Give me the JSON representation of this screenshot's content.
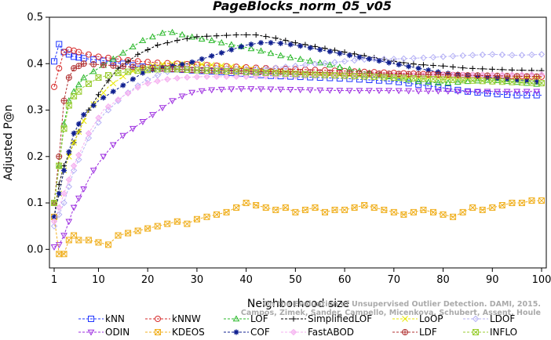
{
  "chart_data": {
    "type": "line",
    "title": "PageBlocks_norm_05_v05",
    "xlabel": "Neighborhood size",
    "ylabel": "Adjusted P@n",
    "xlim": [
      1,
      100
    ],
    "ylim": [
      -0.04,
      0.5
    ],
    "xticks": [
      1,
      10,
      20,
      30,
      40,
      50,
      60,
      70,
      80,
      90,
      100
    ],
    "yticks": [
      0.0,
      0.1,
      0.2,
      0.3,
      0.4,
      0.5
    ],
    "xtick_labels": [
      "1",
      "10",
      "20",
      "30",
      "40",
      "50",
      "60",
      "70",
      "80",
      "90",
      "100"
    ],
    "ytick_labels": [
      "0.0",
      "0.1",
      "0.2",
      "0.3",
      "0.4",
      "0.5"
    ],
    "grid": false,
    "legend_position": "bottom",
    "credit_lines": [
      "On the Evaluation of Unsupervised Outlier Detection. DAMI, 2015.",
      "Campos, Zimek, Sander, Campello, Micenkova, Schubert, Assent, Houle"
    ],
    "series": [
      {
        "name": "kNN",
        "color": "#1f35ff",
        "marker": "square",
        "x": [
          1,
          2,
          3,
          5,
          8,
          12,
          16,
          20,
          25,
          30,
          35,
          40,
          45,
          50,
          55,
          60,
          65,
          70,
          75,
          80,
          85,
          90,
          95,
          100
        ],
        "y": [
          0.405,
          0.442,
          0.425,
          0.415,
          0.41,
          0.405,
          0.398,
          0.392,
          0.388,
          0.385,
          0.382,
          0.378,
          0.374,
          0.372,
          0.37,
          0.368,
          0.365,
          0.362,
          0.355,
          0.348,
          0.34,
          0.335,
          0.332,
          0.332
        ]
      },
      {
        "name": "kNNW",
        "color": "#d62a2a",
        "marker": "circle",
        "x": [
          1,
          2,
          3,
          4,
          5,
          7,
          10,
          14,
          18,
          22,
          26,
          30,
          35,
          40,
          45,
          50,
          55,
          60,
          65,
          70,
          75,
          80,
          85,
          90,
          95,
          100
        ],
        "y": [
          0.35,
          0.39,
          0.425,
          0.43,
          0.428,
          0.422,
          0.415,
          0.41,
          0.405,
          0.402,
          0.4,
          0.398,
          0.395,
          0.392,
          0.39,
          0.388,
          0.386,
          0.384,
          0.382,
          0.38,
          0.378,
          0.376,
          0.375,
          0.374,
          0.373,
          0.372
        ]
      },
      {
        "name": "LOF",
        "color": "#2ab82a",
        "marker": "triangle",
        "x": [
          1,
          2,
          3,
          4,
          5,
          7,
          10,
          13,
          16,
          19,
          22,
          24,
          26,
          28,
          30,
          33,
          36,
          40,
          44,
          48,
          52,
          56,
          60,
          65,
          70,
          75,
          80,
          85,
          90,
          95,
          100
        ],
        "y": [
          0.1,
          0.18,
          0.27,
          0.32,
          0.34,
          0.37,
          0.39,
          0.41,
          0.43,
          0.45,
          0.462,
          0.47,
          0.465,
          0.46,
          0.455,
          0.45,
          0.443,
          0.435,
          0.425,
          0.415,
          0.408,
          0.4,
          0.39,
          0.38,
          0.37,
          0.362,
          0.358,
          0.362,
          0.365,
          0.36,
          0.355
        ]
      },
      {
        "name": "SimplifiedLOF",
        "color": "#000000",
        "marker": "plus",
        "x": [
          1,
          2,
          3,
          5,
          8,
          11,
          14,
          18,
          22,
          26,
          30,
          34,
          38,
          42,
          46,
          50,
          55,
          60,
          65,
          70,
          75,
          80,
          85,
          90,
          95,
          100
        ],
        "y": [
          0.07,
          0.14,
          0.18,
          0.23,
          0.3,
          0.35,
          0.39,
          0.42,
          0.44,
          0.45,
          0.458,
          0.46,
          0.462,
          0.462,
          0.455,
          0.445,
          0.435,
          0.425,
          0.415,
          0.405,
          0.398,
          0.395,
          0.39,
          0.388,
          0.386,
          0.385
        ]
      },
      {
        "name": "LoOP",
        "color": "#e8e800",
        "marker": "cross",
        "x": [
          1,
          2,
          3,
          5,
          8,
          12,
          16,
          20,
          24,
          28,
          32,
          36,
          40,
          45,
          50,
          55,
          60,
          65,
          70,
          75,
          80,
          85,
          90,
          95,
          100
        ],
        "y": [
          0.07,
          0.12,
          0.17,
          0.23,
          0.3,
          0.35,
          0.38,
          0.395,
          0.4,
          0.4,
          0.398,
          0.395,
          0.39,
          0.385,
          0.38,
          0.377,
          0.375,
          0.373,
          0.372,
          0.371,
          0.37,
          0.37,
          0.37,
          0.37,
          0.37
        ]
      },
      {
        "name": "LDOF",
        "color": "#b4b0f5",
        "marker": "diamond",
        "x": [
          1,
          3,
          5,
          8,
          11,
          15,
          19,
          23,
          27,
          31,
          35,
          40,
          45,
          50,
          55,
          60,
          65,
          70,
          75,
          80,
          85,
          90,
          95,
          100
        ],
        "y": [
          0.05,
          0.1,
          0.17,
          0.24,
          0.29,
          0.33,
          0.36,
          0.38,
          0.39,
          0.392,
          0.39,
          0.388,
          0.39,
          0.395,
          0.4,
          0.405,
          0.41,
          0.41,
          0.412,
          0.415,
          0.418,
          0.42,
          0.418,
          0.42
        ]
      },
      {
        "name": "ODIN",
        "color": "#9d2ee0",
        "marker": "triangle-down",
        "x": [
          1,
          2,
          3,
          4,
          5,
          7,
          9,
          11,
          13,
          15,
          17,
          19,
          21,
          23,
          25,
          27,
          29,
          32,
          36,
          40,
          45,
          50,
          55,
          60,
          65,
          70,
          75,
          80,
          85,
          90,
          95,
          100
        ],
        "y": [
          0.005,
          0.01,
          0.03,
          0.06,
          0.09,
          0.13,
          0.17,
          0.2,
          0.225,
          0.245,
          0.26,
          0.275,
          0.29,
          0.305,
          0.32,
          0.33,
          0.338,
          0.343,
          0.345,
          0.346,
          0.345,
          0.344,
          0.343,
          0.342,
          0.342,
          0.342,
          0.341,
          0.341,
          0.34,
          0.34,
          0.34,
          0.34
        ]
      },
      {
        "name": "KDEOS",
        "color": "#f0b020",
        "marker": "square-x",
        "x": [
          1,
          2,
          3,
          4,
          5,
          6,
          8,
          10,
          12,
          14,
          16,
          18,
          20,
          22,
          24,
          26,
          28,
          30,
          32,
          34,
          36,
          38,
          40,
          42,
          44,
          46,
          48,
          50,
          52,
          54,
          56,
          58,
          60,
          62,
          64,
          66,
          68,
          70,
          72,
          74,
          76,
          78,
          80,
          82,
          84,
          86,
          88,
          90,
          92,
          94,
          96,
          98,
          100
        ],
        "y": [
          0.07,
          -0.01,
          -0.01,
          0.02,
          0.03,
          0.02,
          0.02,
          0.015,
          0.01,
          0.03,
          0.035,
          0.04,
          0.045,
          0.05,
          0.055,
          0.06,
          0.055,
          0.065,
          0.07,
          0.075,
          0.08,
          0.09,
          0.1,
          0.095,
          0.09,
          0.085,
          0.09,
          0.08,
          0.085,
          0.09,
          0.08,
          0.085,
          0.085,
          0.09,
          0.095,
          0.09,
          0.085,
          0.08,
          0.075,
          0.08,
          0.085,
          0.08,
          0.075,
          0.07,
          0.08,
          0.09,
          0.085,
          0.09,
          0.095,
          0.1,
          0.1,
          0.105,
          0.105
        ]
      },
      {
        "name": "COF",
        "color": "#102090",
        "marker": "asterisk",
        "x": [
          1,
          2,
          3,
          4,
          5,
          7,
          10,
          13,
          16,
          19,
          22,
          25,
          28,
          31,
          34,
          37,
          40,
          43,
          46,
          50,
          55,
          60,
          65,
          70,
          75,
          80,
          85,
          90,
          95,
          100
        ],
        "y": [
          0.07,
          0.12,
          0.17,
          0.21,
          0.25,
          0.29,
          0.32,
          0.34,
          0.36,
          0.38,
          0.39,
          0.395,
          0.4,
          0.41,
          0.42,
          0.43,
          0.44,
          0.445,
          0.445,
          0.44,
          0.43,
          0.42,
          0.41,
          0.4,
          0.39,
          0.38,
          0.375,
          0.37,
          0.365,
          0.36
        ]
      },
      {
        "name": "FastABOD",
        "color": "#f5b0f0",
        "marker": "diamond-filled",
        "x": [
          1,
          3,
          5,
          8,
          11,
          15,
          19,
          23,
          27,
          31,
          35,
          40,
          45,
          50,
          55,
          60,
          65,
          70,
          75,
          80,
          85,
          90,
          95,
          100
        ],
        "y": [
          0.06,
          0.12,
          0.18,
          0.25,
          0.3,
          0.33,
          0.355,
          0.365,
          0.37,
          0.372,
          0.372,
          0.372,
          0.373,
          0.373,
          0.374,
          0.374,
          0.375,
          0.375,
          0.375,
          0.376,
          0.376,
          0.376,
          0.376,
          0.377
        ]
      },
      {
        "name": "LDF",
        "color": "#b03030",
        "marker": "circle-plus",
        "x": [
          1,
          2,
          3,
          4,
          5,
          7,
          10,
          14,
          18,
          22,
          26,
          30,
          35,
          40,
          45,
          50,
          55,
          60,
          65,
          70,
          75,
          80,
          85,
          90,
          95,
          100
        ],
        "y": [
          0.1,
          0.2,
          0.32,
          0.37,
          0.39,
          0.4,
          0.398,
          0.395,
          0.392,
          0.39,
          0.388,
          0.386,
          0.385,
          0.384,
          0.383,
          0.382,
          0.381,
          0.38,
          0.379,
          0.378,
          0.377,
          0.376,
          0.375,
          0.374,
          0.373,
          0.372
        ]
      },
      {
        "name": "INFLO",
        "color": "#9acd32",
        "marker": "square-x",
        "x": [
          1,
          2,
          3,
          4,
          5,
          7,
          10,
          14,
          18,
          22,
          26,
          30,
          35,
          40,
          45,
          50,
          55,
          60,
          65,
          70,
          75,
          80,
          85,
          90,
          95,
          100
        ],
        "y": [
          0.1,
          0.18,
          0.26,
          0.31,
          0.33,
          0.35,
          0.37,
          0.38,
          0.385,
          0.388,
          0.388,
          0.386,
          0.384,
          0.382,
          0.38,
          0.378,
          0.376,
          0.374,
          0.372,
          0.37,
          0.368,
          0.366,
          0.364,
          0.362,
          0.36,
          0.358
        ]
      }
    ]
  }
}
